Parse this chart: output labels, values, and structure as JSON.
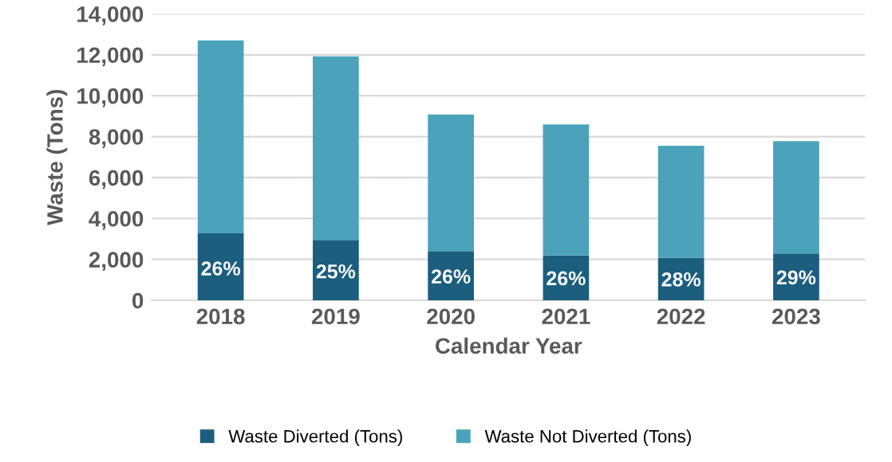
{
  "chart_data": {
    "type": "bar",
    "stacked": true,
    "xlabel": "Calendar Year",
    "ylabel": "Waste (Tons)",
    "categories": [
      "2018",
      "2019",
      "2020",
      "2021",
      "2022",
      "2023"
    ],
    "series": [
      {
        "name": "Waste Diverted (Tons)",
        "color": "#1b5e7e",
        "values": [
          3270,
          2950,
          2400,
          2200,
          2080,
          2290
        ]
      },
      {
        "name": "Waste Not Diverted (Tons)",
        "color": "#4aa3ba",
        "values": [
          9430,
          8970,
          6680,
          6390,
          5470,
          5490
        ]
      }
    ],
    "ylim": [
      0,
      14000
    ],
    "yticks": [
      {
        "value": 0,
        "label": "0"
      },
      {
        "value": 2000,
        "label": "2,000"
      },
      {
        "value": 4000,
        "label": "4,000"
      },
      {
        "value": 6000,
        "label": "6,000"
      },
      {
        "value": 8000,
        "label": "8,000"
      },
      {
        "value": 10000,
        "label": "10,000"
      },
      {
        "value": 12000,
        "label": "12,000"
      },
      {
        "value": 14000,
        "label": "14,000"
      }
    ],
    "annotations": [
      "26%",
      "25%",
      "26%",
      "26%",
      "28%",
      "29%"
    ],
    "grid": "y",
    "legend": "bottom"
  }
}
